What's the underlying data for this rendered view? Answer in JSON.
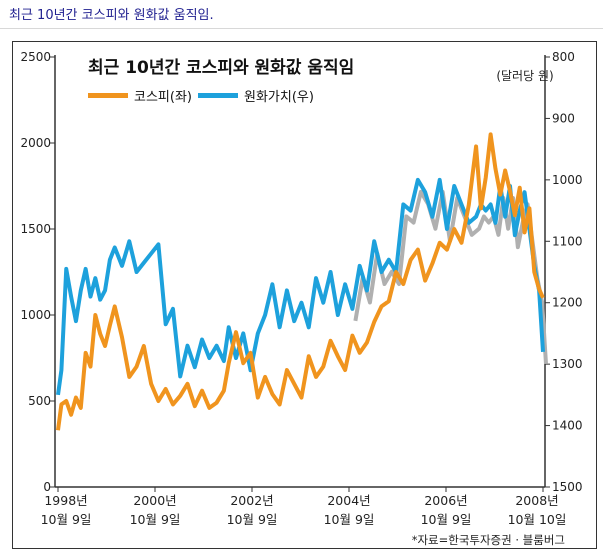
{
  "caption": "최근 10년간 코스피와 원화값 움직임.",
  "chart_data": {
    "type": "line",
    "title": "최근 10년간 코스피와 원화값 움직임",
    "x_labels": [
      {
        "year": "1998년",
        "date": "10월 9일"
      },
      {
        "year": "2000년",
        "date": "10월 9일"
      },
      {
        "year": "2002년",
        "date": "10월 9일"
      },
      {
        "year": "2004년",
        "date": "10월 9일"
      },
      {
        "year": "2006년",
        "date": "10월 9일"
      },
      {
        "year": "2008년",
        "date": "10월 10일"
      }
    ],
    "y_left": {
      "ticks": [
        "2500",
        "2000",
        "1500",
        "1000",
        "500",
        "0"
      ],
      "range": [
        0,
        2500
      ]
    },
    "y_right": {
      "ticks": [
        "800",
        "900",
        "1000",
        "1100",
        "1200",
        "1300",
        "1400",
        "1500"
      ],
      "range": [
        1500,
        800
      ],
      "unit": "(달러당 원)"
    },
    "source": "*자료=한국투자증권 · 블룸버그",
    "series": [
      {
        "name": "코스피(좌)",
        "color": "#f0941e",
        "axis": "left",
        "x": [
          1998.78,
          1998.85,
          1998.95,
          1999.05,
          1999.15,
          1999.25,
          1999.35,
          1999.45,
          1999.55,
          1999.65,
          1999.75,
          1999.85,
          1999.95,
          2000.1,
          2000.25,
          2000.4,
          2000.55,
          2000.7,
          2000.85,
          2001.0,
          2001.15,
          2001.3,
          2001.45,
          2001.6,
          2001.75,
          2001.9,
          2002.05,
          2002.2,
          2002.3,
          2002.45,
          2002.6,
          2002.75,
          2002.9,
          2003.05,
          2003.2,
          2003.35,
          2003.5,
          2003.65,
          2003.8,
          2003.95,
          2004.1,
          2004.25,
          2004.4,
          2004.55,
          2004.7,
          2004.85,
          2005.0,
          2005.15,
          2005.3,
          2005.45,
          2005.6,
          2005.75,
          2005.9,
          2006.05,
          2006.2,
          2006.35,
          2006.5,
          2006.65,
          2006.8,
          2006.95,
          2007.1,
          2007.25,
          2007.4,
          2007.5,
          2007.6,
          2007.7,
          2007.8,
          2007.9,
          2008.0,
          2008.1,
          2008.2,
          2008.3,
          2008.4,
          2008.5,
          2008.6,
          2008.7,
          2008.78
        ],
        "y": [
          330,
          480,
          500,
          420,
          520,
          460,
          780,
          700,
          1000,
          890,
          820,
          940,
          1050,
          870,
          640,
          700,
          820,
          600,
          500,
          570,
          480,
          530,
          600,
          470,
          560,
          460,
          490,
          560,
          720,
          900,
          720,
          780,
          520,
          640,
          540,
          480,
          680,
          600,
          520,
          760,
          640,
          700,
          850,
          760,
          680,
          880,
          780,
          840,
          960,
          1050,
          1080,
          1250,
          1180,
          1320,
          1380,
          1200,
          1300,
          1420,
          1380,
          1500,
          1420,
          1640,
          1980,
          1620,
          1800,
          2050,
          1850,
          1700,
          1840,
          1720,
          1580,
          1740,
          1480,
          1620,
          1250,
          1150,
          1100
        ]
      },
      {
        "name": "원화가치(우)",
        "color": "#1da1dc",
        "axis": "right",
        "x": [
          1998.78,
          1998.85,
          1998.95,
          1999.05,
          1999.15,
          1999.25,
          1999.35,
          1999.45,
          1999.55,
          1999.65,
          1999.75,
          1999.85,
          1999.95,
          2000.1,
          2000.25,
          2000.4,
          2000.55,
          2000.7,
          2000.85,
          2001.0,
          2001.15,
          2001.3,
          2001.45,
          2001.6,
          2001.75,
          2001.9,
          2002.05,
          2002.2,
          2002.3,
          2002.45,
          2002.6,
          2002.75,
          2002.9,
          2003.05,
          2003.2,
          2003.35,
          2003.5,
          2003.65,
          2003.8,
          2003.95,
          2004.1,
          2004.25,
          2004.4,
          2004.55,
          2004.7,
          2004.85,
          2005.0,
          2005.15,
          2005.3,
          2005.45,
          2005.6,
          2005.75,
          2005.9,
          2006.05,
          2006.2,
          2006.35,
          2006.5,
          2006.65,
          2006.8,
          2006.95,
          2007.1,
          2007.25,
          2007.4,
          2007.5,
          2007.6,
          2007.7,
          2007.8,
          2007.9,
          2008.0,
          2008.1,
          2008.2,
          2008.3,
          2008.4,
          2008.5,
          2008.6,
          2008.7,
          2008.78
        ],
        "y": [
          1350,
          1310,
          1145,
          1190,
          1230,
          1180,
          1145,
          1190,
          1160,
          1195,
          1180,
          1130,
          1110,
          1140,
          1100,
          1150,
          1135,
          1120,
          1105,
          1235,
          1210,
          1320,
          1270,
          1305,
          1260,
          1290,
          1270,
          1295,
          1240,
          1290,
          1250,
          1310,
          1250,
          1220,
          1170,
          1240,
          1180,
          1230,
          1200,
          1240,
          1160,
          1200,
          1150,
          1220,
          1170,
          1210,
          1140,
          1180,
          1100,
          1150,
          1130,
          1150,
          1040,
          1050,
          1000,
          1020,
          1060,
          1000,
          1080,
          1010,
          1040,
          1070,
          1060,
          1040,
          1050,
          1040,
          1070,
          1010,
          1060,
          1010,
          1090,
          1050,
          1020,
          1080,
          1140,
          1180,
          1280
        ]
      }
    ],
    "gray_series_color": "#b0b0b0"
  }
}
